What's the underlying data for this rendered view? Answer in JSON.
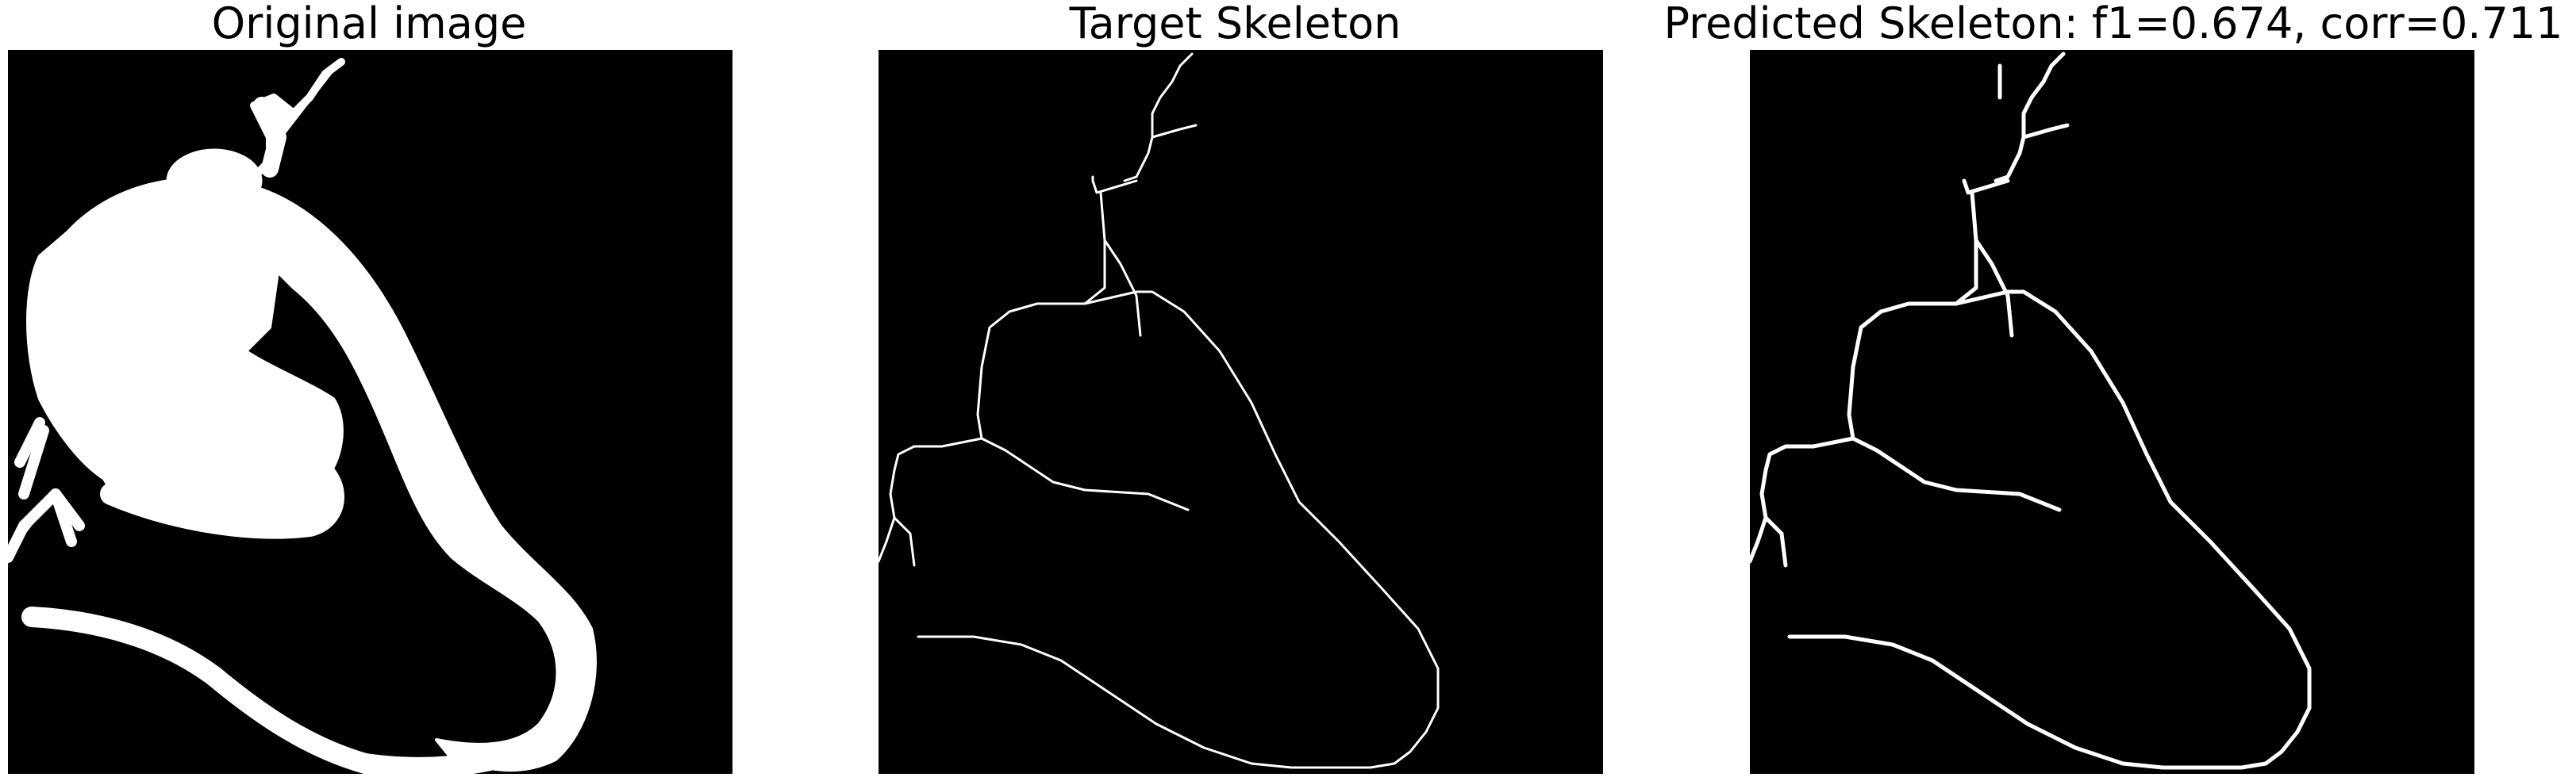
{
  "panels": [
    {
      "title": "Original image",
      "content": "silhouette"
    },
    {
      "title": "Target Skeleton",
      "content": "skeleton-thin"
    },
    {
      "title": "Predicted Skeleton: f1=0.674, corr=0.711",
      "content": "skeleton-thick"
    }
  ],
  "colors": {
    "background": "#000000",
    "foreground": "#ffffff"
  }
}
